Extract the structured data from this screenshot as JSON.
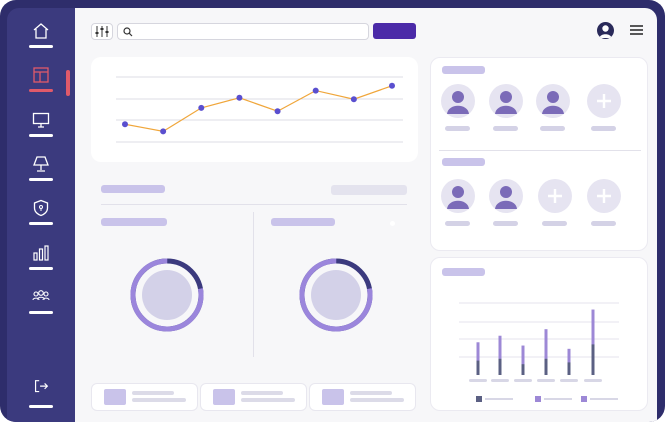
{
  "sidebar": {
    "items": [
      {
        "name": "home-icon",
        "active": false
      },
      {
        "name": "layout-icon",
        "active": true
      },
      {
        "name": "monitor-icon",
        "active": false
      },
      {
        "name": "lamp-icon",
        "active": false
      },
      {
        "name": "shield-icon",
        "active": false
      },
      {
        "name": "bar-chart-icon",
        "active": false
      },
      {
        "name": "team-icon",
        "active": false
      }
    ],
    "logout_icon": "logout-icon",
    "active_color": "#e05a6a"
  },
  "topbar": {
    "search": {
      "placeholder": "",
      "value": ""
    },
    "search_button_color": "#4b2aa8",
    "filter_icon": "sliders-icon",
    "menu_icon": "hamburger-icon"
  },
  "line_chart": {
    "chart_data": {
      "type": "line",
      "x": [
        1,
        2,
        3,
        4,
        5,
        6,
        7,
        8
      ],
      "values": [
        3.5,
        2.0,
        6.9,
        9.0,
        6.2,
        10.5,
        8.7,
        11.5
      ],
      "ylim": [
        0,
        15
      ],
      "grid": true,
      "line_color": "#f0a63a",
      "point_color": "#5a4fcf"
    }
  },
  "donuts": [
    {
      "name": "donut-left",
      "value": 0.78
    },
    {
      "name": "donut-right",
      "value": 0.78
    }
  ],
  "bar_chart": {
    "chart_data": {
      "type": "bar",
      "categories": [
        "",
        "",
        "",
        "",
        "",
        ""
      ],
      "series": [
        {
          "values": [
            10,
            12,
            9,
            14,
            8,
            20
          ]
        },
        {
          "values": [
            8,
            9,
            6,
            9,
            7,
            17
          ]
        }
      ],
      "grid": true,
      "colors": [
        "#5b6083",
        "#9d88d6"
      ]
    }
  },
  "mini_cards": [
    {},
    {},
    {}
  ]
}
